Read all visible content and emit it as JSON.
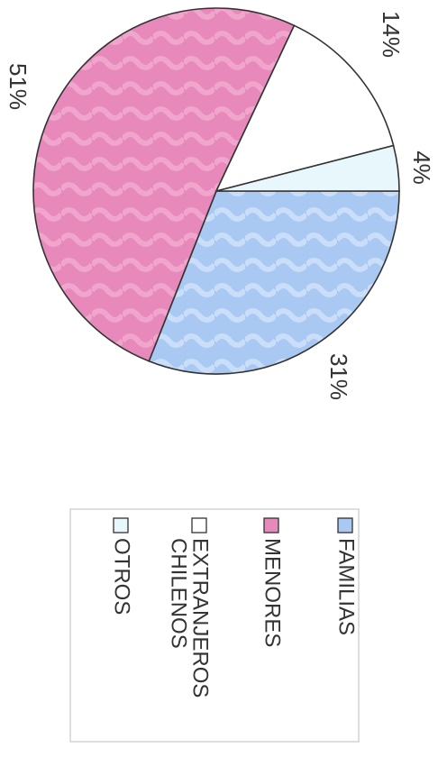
{
  "chart_data": {
    "type": "pie",
    "title": "",
    "slices": [
      {
        "label": "FAMILIAS",
        "value": 31,
        "display": "31%",
        "color": "#a9c8f2"
      },
      {
        "label": "MENORES",
        "value": 51,
        "display": "51%",
        "color": "#e889bb"
      },
      {
        "label": "EXTRANJEROS CHILENOS",
        "value": 14,
        "display": "14%",
        "color": "#ffffff"
      },
      {
        "label": "OTROS",
        "value": 4,
        "display": "4%",
        "color": "#e8f7fb"
      }
    ],
    "legend": {
      "placement": "bottom",
      "items": [
        {
          "lines": [
            "FAMILIAS"
          ],
          "color": "#a9c8f2"
        },
        {
          "lines": [
            "MENORES"
          ],
          "color": "#e889bb"
        },
        {
          "lines": [
            "EXTRANJEROS",
            "CHILENOS"
          ],
          "color": "#ffffff"
        },
        {
          "lines": [
            "OTROS"
          ],
          "color": "#e8f7fb"
        }
      ]
    }
  }
}
